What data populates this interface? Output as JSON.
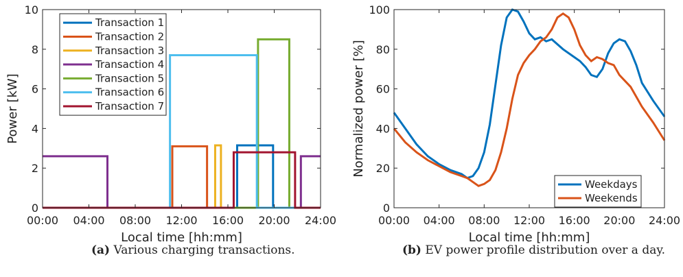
{
  "captions": [
    {
      "tag": "(a)",
      "text": "Various charging transactions."
    },
    {
      "tag": "(b)",
      "text": "EV power profile distribution over a day."
    }
  ],
  "chart_data": [
    {
      "type": "line",
      "title": "",
      "xlabel": "Local time [hh:mm]",
      "ylabel": "Power [kW]",
      "x_unit": "hours of day",
      "xlim": [
        0,
        24
      ],
      "ylim": [
        0,
        10
      ],
      "xticks": [
        0,
        4,
        8,
        12,
        16,
        20,
        24
      ],
      "xtick_labels": [
        "00:00",
        "04:00",
        "08:00",
        "12:00",
        "16:00",
        "20:00",
        "24:00"
      ],
      "yticks": [
        0,
        2,
        4,
        6,
        8,
        10
      ],
      "ytick_labels": [
        "0",
        "2",
        "4",
        "6",
        "8",
        "10"
      ],
      "grid": false,
      "legend": "top-left",
      "series": [
        {
          "name": "Transaction 1",
          "color": "#0072BD",
          "x": [
            0,
            16.8,
            16.8,
            19.9,
            19.9,
            24
          ],
          "y": [
            0,
            0,
            3.15,
            3.15,
            0,
            0
          ]
        },
        {
          "name": "Transaction 2",
          "color": "#D95319",
          "x": [
            0,
            11.2,
            11.2,
            14.2,
            14.2,
            24
          ],
          "y": [
            0,
            0,
            3.1,
            3.1,
            0,
            0
          ]
        },
        {
          "name": "Transaction 3",
          "color": "#EDB120",
          "x": [
            0,
            14.9,
            14.9,
            15.4,
            15.4,
            24
          ],
          "y": [
            0,
            0,
            3.15,
            3.15,
            0,
            0
          ]
        },
        {
          "name": "Transaction 4",
          "color": "#7E2F8E",
          "x": [
            0,
            5.6,
            5.6,
            22.3,
            22.3,
            24
          ],
          "y": [
            2.6,
            2.6,
            0,
            0,
            2.6,
            2.6
          ]
        },
        {
          "name": "Transaction 5",
          "color": "#77AC30",
          "x": [
            0,
            18.6,
            18.6,
            21.3,
            21.3,
            24
          ],
          "y": [
            0,
            0,
            8.5,
            8.5,
            0,
            0
          ]
        },
        {
          "name": "Transaction 6",
          "color": "#4DBEEE",
          "x": [
            0,
            11.0,
            11.0,
            18.5,
            18.5,
            24
          ],
          "y": [
            0,
            0,
            7.7,
            7.7,
            0,
            0
          ]
        },
        {
          "name": "Transaction 7",
          "color": "#A2142F",
          "x": [
            0,
            16.5,
            16.5,
            21.8,
            21.8,
            24
          ],
          "y": [
            0,
            0,
            2.8,
            2.8,
            0,
            0
          ]
        }
      ]
    },
    {
      "type": "line",
      "title": "",
      "xlabel": "Local time [hh:mm]",
      "ylabel": "Normalized power [%]",
      "x_unit": "hours of day",
      "xlim": [
        0,
        24
      ],
      "ylim": [
        0,
        100
      ],
      "xticks": [
        0,
        4,
        8,
        12,
        16,
        20,
        24
      ],
      "xtick_labels": [
        "00:00",
        "04:00",
        "08:00",
        "12:00",
        "16:00",
        "20:00",
        "24:00"
      ],
      "yticks": [
        0,
        20,
        40,
        60,
        80,
        100
      ],
      "ytick_labels": [
        "0",
        "20",
        "40",
        "60",
        "80",
        "100"
      ],
      "grid": false,
      "legend": "bottom-right",
      "series": [
        {
          "name": "Weekdays",
          "color": "#0072BD",
          "x": [
            0,
            1,
            2,
            3,
            4,
            5,
            6,
            6.5,
            7,
            7.5,
            8,
            8.5,
            9,
            9.5,
            10,
            10.5,
            11,
            11.5,
            12,
            12.5,
            13,
            13.5,
            14,
            15,
            16,
            16.5,
            17,
            17.5,
            18,
            18.5,
            19,
            19.5,
            20,
            20.5,
            21,
            21.5,
            22,
            23,
            24
          ],
          "y": [
            48,
            40,
            32,
            26,
            22,
            19,
            17,
            15,
            16,
            20,
            28,
            42,
            62,
            82,
            96,
            100,
            99,
            94,
            88,
            85,
            86,
            84,
            85,
            80,
            76,
            74,
            71,
            67,
            66,
            70,
            78,
            83,
            85,
            84,
            79,
            72,
            63,
            54,
            46
          ]
        },
        {
          "name": "Weekends",
          "color": "#D95319",
          "x": [
            0,
            1,
            2,
            3,
            4,
            5,
            6,
            6.5,
            7,
            7.5,
            8,
            8.5,
            9,
            9.5,
            10,
            10.5,
            11,
            11.5,
            12,
            12.5,
            13,
            13.5,
            14,
            14.5,
            15,
            15.5,
            16,
            16.5,
            17,
            17.5,
            18,
            18.5,
            19,
            19.5,
            20,
            20.5,
            21,
            21.5,
            22,
            23,
            24
          ],
          "y": [
            40,
            33,
            28,
            24,
            21,
            18,
            16,
            15,
            13,
            11,
            12,
            14,
            19,
            28,
            40,
            55,
            67,
            73,
            77,
            80,
            84,
            86,
            90,
            96,
            98,
            96,
            90,
            82,
            77,
            74,
            76,
            75,
            73,
            72,
            67,
            64,
            61,
            56,
            51,
            43,
            34
          ]
        }
      ]
    }
  ]
}
